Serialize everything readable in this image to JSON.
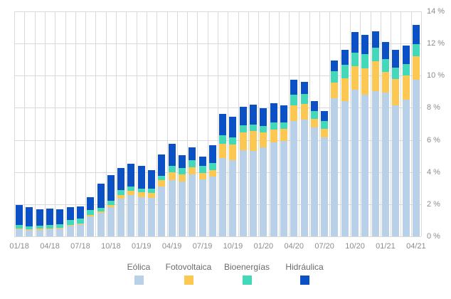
{
  "chart_data": {
    "type": "bar",
    "stacked": true,
    "title": "",
    "xlabel": "",
    "ylabel": "",
    "ylim": [
      0,
      14
    ],
    "y_tick_step": 2,
    "y_tick_labels": [
      "0 %",
      "2 %",
      "4 %",
      "6 %",
      "8 %",
      "10 %",
      "12 %",
      "14 %"
    ],
    "x_tick_every": 3,
    "x_tick_labels_visible": [
      "01/18",
      "04/18",
      "07/18",
      "10/18",
      "01/19",
      "04/19",
      "07/19",
      "10/19",
      "01/20",
      "04/20",
      "07/20",
      "10/20",
      "01/21",
      "04/21"
    ],
    "grid": "both",
    "legend_position": "bottom",
    "categories": [
      "01/18",
      "02/18",
      "03/18",
      "04/18",
      "05/18",
      "06/18",
      "07/18",
      "08/18",
      "09/18",
      "10/18",
      "11/18",
      "12/18",
      "01/19",
      "02/19",
      "03/19",
      "04/19",
      "05/19",
      "06/19",
      "07/19",
      "08/19",
      "09/19",
      "10/19",
      "11/19",
      "12/19",
      "01/20",
      "02/20",
      "03/20",
      "04/20",
      "05/20",
      "06/20",
      "07/20",
      "08/20",
      "09/20",
      "10/20",
      "11/20",
      "12/20",
      "01/21",
      "02/21",
      "03/21",
      "04/21"
    ],
    "series": [
      {
        "name": "Eólica",
        "color": "#b9d1e8",
        "values": [
          0.47,
          0.41,
          0.41,
          0.47,
          0.49,
          0.67,
          0.77,
          1.23,
          1.45,
          1.81,
          2.37,
          2.55,
          2.44,
          2.4,
          3.11,
          3.5,
          3.4,
          3.85,
          3.56,
          3.73,
          4.89,
          4.74,
          5.38,
          5.33,
          5.56,
          5.85,
          5.93,
          7.16,
          7.26,
          6.77,
          6.15,
          8.59,
          8.44,
          9.11,
          8.81,
          9.04,
          8.96,
          8.15,
          8.52,
          9.75
        ]
      },
      {
        "name": "Fotovoltaica",
        "color": "#fcc851",
        "values": [
          0.04,
          0.04,
          0.06,
          0.04,
          0.06,
          0.03,
          0.04,
          0.1,
          0.09,
          0.15,
          0.22,
          0.27,
          0.3,
          0.3,
          0.37,
          0.5,
          0.45,
          0.44,
          0.37,
          0.41,
          0.89,
          0.96,
          1.07,
          1.23,
          0.89,
          0.81,
          0.74,
          0.99,
          0.96,
          0.56,
          0.52,
          1.0,
          1.41,
          1.49,
          1.63,
          1.85,
          1.29,
          1.66,
          1.51,
          1.48
        ]
      },
      {
        "name": "Bioenergías",
        "color": "#42d8ba",
        "values": [
          0.19,
          0.18,
          0.19,
          0.19,
          0.19,
          0.3,
          0.3,
          0.33,
          0.24,
          0.27,
          0.3,
          0.3,
          0.25,
          0.27,
          0.3,
          0.37,
          0.4,
          0.44,
          0.44,
          0.41,
          0.52,
          0.48,
          0.48,
          0.4,
          0.42,
          0.41,
          0.44,
          0.67,
          0.62,
          0.49,
          0.52,
          0.67,
          0.82,
          0.84,
          0.89,
          0.84,
          0.79,
          0.71,
          0.71,
          0.74
        ]
      },
      {
        "name": "Hidráulica",
        "color": "#0b50c5",
        "values": [
          1.26,
          1.18,
          1.04,
          1.04,
          0.95,
          0.81,
          0.74,
          0.79,
          1.51,
          1.56,
          1.38,
          1.41,
          1.41,
          1.14,
          1.33,
          1.38,
          0.78,
          0.79,
          0.59,
          1.11,
          1.33,
          1.27,
          1.14,
          1.23,
          1.1,
          1.23,
          1.04,
          0.92,
          0.79,
          0.59,
          0.59,
          0.7,
          0.96,
          1.26,
          1.23,
          1.04,
          1.06,
          1.07,
          1.14,
          1.17
        ]
      }
    ],
    "colors": {
      "gridline": "#d9d9d9",
      "axis_text": "#8c8c8c",
      "legend_text": "#6b6b6b",
      "background": "#ffffff"
    }
  },
  "legend": {
    "items": [
      {
        "label": "Eólica"
      },
      {
        "label": "Fotovoltaica"
      },
      {
        "label": "Bioenergías"
      },
      {
        "label": "Hidráulica"
      }
    ]
  }
}
